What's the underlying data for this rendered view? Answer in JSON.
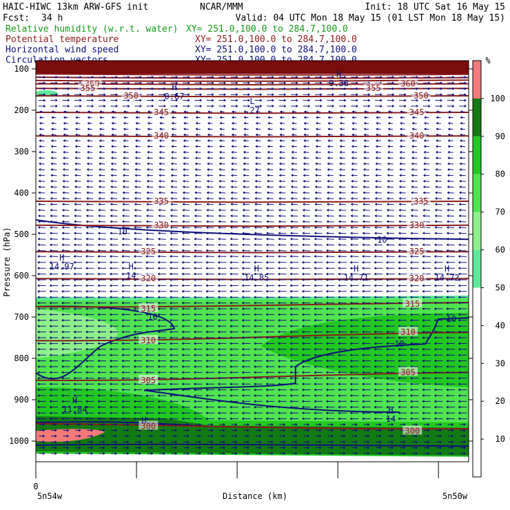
{
  "header": {
    "title": "HAIC-HIWC 13km ARW-GFS init",
    "org": "NCAR/MMM",
    "init": "Init: 18 UTC Sat 16 May 15",
    "fcst_label": "Fcst:",
    "fcst_value": "34 h",
    "valid": "Valid: 04 UTC Mon 18 May 15 (01 LST Mon 18 May 15)",
    "fields": [
      {
        "name": "Relative humidity (w.r.t. water)",
        "xy": "XY= 251.0,100.0 to 284.7,100.0",
        "color": "#159a15"
      },
      {
        "name": "Potential temperature",
        "xy": "XY= 251.0,100.0 to 284.7,100.0",
        "color": "#8b1a1a"
      },
      {
        "name": "Horizontal wind speed",
        "xy": "XY= 251.0,100.0 to 284.7,100.0",
        "color": "#10107a"
      },
      {
        "name": "Circulation vectors",
        "xy": "XY= 251.0,100.0 to 284.7,100.0",
        "color": "#10107a"
      }
    ]
  },
  "chart_data": {
    "type": "heatmap",
    "ylabel": "Pressure (hPa)",
    "xlabel": "Distance (km)",
    "y_ticks": [
      100,
      200,
      300,
      400,
      500,
      600,
      700,
      800,
      900,
      1000
    ],
    "ylim": [
      80,
      1050
    ],
    "x_start_label": "0",
    "x_left_label": "5n54w",
    "x_right_label": "5n50w",
    "colorbar": {
      "unit": "%",
      "ticks": [
        10,
        20,
        30,
        40,
        50,
        60,
        70,
        80,
        90,
        100
      ],
      "bands": [
        {
          "from": 50,
          "to": 60,
          "color": "#5fe89a"
        },
        {
          "from": 60,
          "to": 70,
          "color": "#8ef08a"
        },
        {
          "from": 70,
          "to": 80,
          "color": "#50e450"
        },
        {
          "from": 80,
          "to": 90,
          "color": "#22c822"
        },
        {
          "from": 90,
          "to": 100,
          "color": "#127a12"
        },
        {
          "from": 100,
          "to": 110,
          "color": "#f27a7a"
        }
      ]
    },
    "theta_labels": [
      "360",
      "355",
      "350",
      "345",
      "340",
      "335",
      "330",
      "325",
      "320",
      "315",
      "310",
      "305",
      "300"
    ],
    "theta_label_instances": [
      {
        "t": "360",
        "x": 0.13,
        "p": 136
      },
      {
        "t": "360",
        "x": 0.86,
        "p": 136
      },
      {
        "t": "355",
        "x": 0.12,
        "p": 147
      },
      {
        "t": "355",
        "x": 0.78,
        "p": 147
      },
      {
        "t": "350",
        "x": 0.22,
        "p": 165
      },
      {
        "t": "350",
        "x": 0.89,
        "p": 165
      },
      {
        "t": "345",
        "x": 0.29,
        "p": 205
      },
      {
        "t": "345",
        "x": 0.88,
        "p": 205
      },
      {
        "t": "340",
        "x": 0.29,
        "p": 262
      },
      {
        "t": "340",
        "x": 0.88,
        "p": 262
      },
      {
        "t": "335",
        "x": 0.29,
        "p": 420
      },
      {
        "t": "335",
        "x": 0.89,
        "p": 420
      },
      {
        "t": "330",
        "x": 0.29,
        "p": 478
      },
      {
        "t": "330",
        "x": 0.88,
        "p": 478
      },
      {
        "t": "325",
        "x": 0.26,
        "p": 542
      },
      {
        "t": "325",
        "x": 0.88,
        "p": 542
      },
      {
        "t": "320",
        "x": 0.26,
        "p": 607
      },
      {
        "t": "320",
        "x": 0.88,
        "p": 607
      },
      {
        "t": "315",
        "x": 0.26,
        "p": 680
      },
      {
        "t": "315",
        "x": 0.87,
        "p": 668
      },
      {
        "t": "310",
        "x": 0.26,
        "p": 757
      },
      {
        "t": "310",
        "x": 0.86,
        "p": 737
      },
      {
        "t": "305",
        "x": 0.26,
        "p": 853
      },
      {
        "t": "305",
        "x": 0.86,
        "p": 834
      },
      {
        "t": "300",
        "x": 0.26,
        "p": 964
      },
      {
        "t": "300",
        "x": 0.87,
        "p": 976
      }
    ],
    "wind_speed_labels": [
      {
        "t": "10",
        "x": 0.2,
        "p": 493
      },
      {
        "t": "10",
        "x": 0.8,
        "p": 513
      },
      {
        "t": "10",
        "x": 0.27,
        "p": 700
      },
      {
        "t": "10",
        "x": 0.84,
        "p": 765
      },
      {
        "t": "10",
        "x": 0.96,
        "p": 705
      }
    ],
    "max_markers": [
      {
        "type": "H",
        "value": "9.38",
        "x": 0.7,
        "p": 120
      },
      {
        "type": "H",
        "value": "0.67",
        "x": 0.32,
        "p": 152
      },
      {
        "type": "L",
        "value": ".27",
        "x": 0.5,
        "p": 185
      },
      {
        "type": "H",
        "value": "14.97",
        "x": 0.06,
        "p": 563
      },
      {
        "type": "H",
        "value": "14",
        "x": 0.22,
        "p": 585
      },
      {
        "type": "H",
        "value": "14.85",
        "x": 0.51,
        "p": 590
      },
      {
        "type": "H",
        "value": "14.71",
        "x": 0.74,
        "p": 590
      },
      {
        "type": "H",
        "value": "14.72",
        "x": 0.95,
        "p": 590
      },
      {
        "type": "H",
        "value": "11.84",
        "x": 0.09,
        "p": 908
      },
      {
        "type": "H",
        "value": "",
        "x": 0.25,
        "p": 957
      },
      {
        "type": "H",
        "value": "14",
        "x": 0.82,
        "p": 932
      }
    ]
  }
}
